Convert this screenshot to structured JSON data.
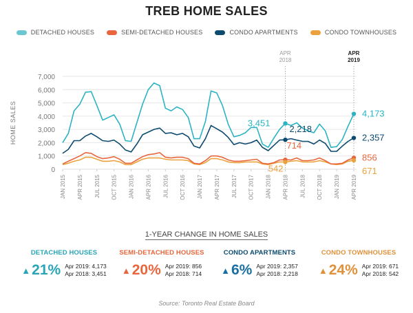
{
  "chart_data": {
    "type": "line",
    "title": "TREB HOME SALES",
    "ylabel": "HOME SALES",
    "xlabel": "",
    "ylim": [
      0,
      7000
    ],
    "yticks": [
      "0",
      "1,000",
      "2,000",
      "3,000",
      "4,000",
      "5,000",
      "6,000",
      "7,000"
    ],
    "ytick_values": [
      0,
      1000,
      2000,
      3000,
      4000,
      5000,
      6000,
      7000
    ],
    "grid": true,
    "legend_position": "top",
    "x_tick_labels": [
      "JAN 2015",
      "APR 2015",
      "JUL 2015",
      "OCT 2015",
      "JAN 2016",
      "APR 2016",
      "JUL 2016",
      "OCT 2016",
      "JAN 2017",
      "APR 2017",
      "JUL 2017",
      "OCT 2017",
      "JAN 2018",
      "APR 2018",
      "JUL 2018",
      "OCT 2018",
      "JAN 2019",
      "APR 2019"
    ],
    "x_months_start": "JAN 2015",
    "x_months_count": 52,
    "series": [
      {
        "name": "DETACHED HOUSES",
        "color": "#2bb3c3",
        "values": [
          2000,
          2700,
          4400,
          4900,
          5800,
          5850,
          4800,
          3700,
          3900,
          4100,
          3400,
          2150,
          2100,
          3500,
          4900,
          6000,
          6500,
          6300,
          4600,
          4400,
          4700,
          4500,
          3900,
          2300,
          2300,
          3600,
          5900,
          5750,
          4800,
          3400,
          2450,
          2550,
          2750,
          3150,
          3150,
          1900,
          1650,
          2350,
          3000,
          3451,
          3300,
          3500,
          3100,
          2900,
          2750,
          3400,
          2900,
          1650,
          1700,
          2250,
          3250,
          4173
        ]
      },
      {
        "name": "SEMI-DETACHED HOUSES",
        "color": "#e8663d",
        "values": [
          400,
          600,
          800,
          1000,
          1250,
          1200,
          950,
          800,
          850,
          950,
          750,
          450,
          450,
          700,
          950,
          1100,
          1150,
          1250,
          900,
          850,
          900,
          900,
          800,
          450,
          400,
          650,
          1000,
          1000,
          900,
          700,
          600,
          600,
          650,
          700,
          750,
          450,
          400,
          500,
          700,
          714,
          700,
          850,
          650,
          650,
          700,
          850,
          650,
          400,
          400,
          450,
          700,
          856
        ]
      },
      {
        "name": "CONDO APARTMENTS",
        "color": "#0c4a6e",
        "values": [
          1200,
          1500,
          2150,
          2150,
          2500,
          2700,
          2450,
          2150,
          2100,
          2200,
          1900,
          1450,
          1300,
          1900,
          2600,
          2800,
          3000,
          3100,
          2700,
          2750,
          2600,
          2700,
          2450,
          1750,
          1600,
          2300,
          3300,
          3050,
          2800,
          2400,
          1850,
          2000,
          1900,
          2000,
          2200,
          1650,
          1400,
          1800,
          2200,
          2218,
          2300,
          2200,
          2100,
          2100,
          1900,
          2200,
          1950,
          1350,
          1350,
          1750,
          2100,
          2357
        ]
      },
      {
        "name": "CONDO TOWNHOUSES",
        "color": "#eba13c",
        "values": [
          350,
          450,
          600,
          700,
          900,
          900,
          750,
          600,
          600,
          650,
          550,
          350,
          350,
          550,
          750,
          850,
          850,
          850,
          750,
          700,
          700,
          700,
          650,
          400,
          350,
          500,
          800,
          800,
          700,
          550,
          500,
          500,
          550,
          550,
          550,
          400,
          350,
          450,
          550,
          542,
          600,
          650,
          550,
          550,
          550,
          650,
          550,
          400,
          350,
          400,
          600,
          671
        ]
      }
    ],
    "reference_lines": [
      {
        "label_top": "APR",
        "label_bottom": "2018",
        "month_index": 39,
        "bold": false
      },
      {
        "label_top": "APR",
        "label_bottom": "2019",
        "month_index": 51,
        "bold": true
      }
    ],
    "annotations": [
      {
        "series": 0,
        "month_index": 39,
        "text": "3,451"
      },
      {
        "series": 0,
        "month_index": 51,
        "text": "4,173"
      },
      {
        "series": 2,
        "month_index": 39,
        "text": "2,218"
      },
      {
        "series": 2,
        "month_index": 51,
        "text": "2,357"
      },
      {
        "series": 1,
        "month_index": 39,
        "text": "714"
      },
      {
        "series": 1,
        "month_index": 51,
        "text": "856"
      },
      {
        "series": 3,
        "month_index": 39,
        "text": "542"
      },
      {
        "series": 3,
        "month_index": 51,
        "text": "671"
      }
    ]
  },
  "legend": [
    {
      "label": "DETACHED HOUSES",
      "color": "#6cc7d2"
    },
    {
      "label": "SEMI-DETACHED HOUSES",
      "color": "#e8663d"
    },
    {
      "label": "CONDO APARTMENTS",
      "color": "#0c4a6e"
    },
    {
      "label": "CONDO TOWNHOUSES",
      "color": "#eba13c"
    }
  ],
  "summary": {
    "title": "1-YEAR CHANGE IN HOME SALES",
    "items": [
      {
        "name": "DETACHED HOUSES",
        "color": "#2aa5b8",
        "pct": "21%",
        "line1": "Apr 2019: 4,173",
        "line2": "Apr 2018: 3,451"
      },
      {
        "name": "SEMI-DETACHED HOUSES",
        "color": "#e8663d",
        "pct": "20%",
        "line1": "Apr 2019: 856",
        "line2": "Apr 2018: 714"
      },
      {
        "name": "CONDO APARTMENTS",
        "color": "#0c4a6e",
        "pct": "6%",
        "line1": "Apr 2019: 2,357",
        "line2": "Apr 2018: 2,218"
      },
      {
        "name": "CONDO TOWNHOUSES",
        "color": "#e0913a",
        "pct": "24%",
        "line1": "Apr 2019: 671",
        "line2": "Apr 2018: 542"
      }
    ]
  },
  "source": "Source: Toronto Real Estate Board",
  "up_arrow": "▲"
}
